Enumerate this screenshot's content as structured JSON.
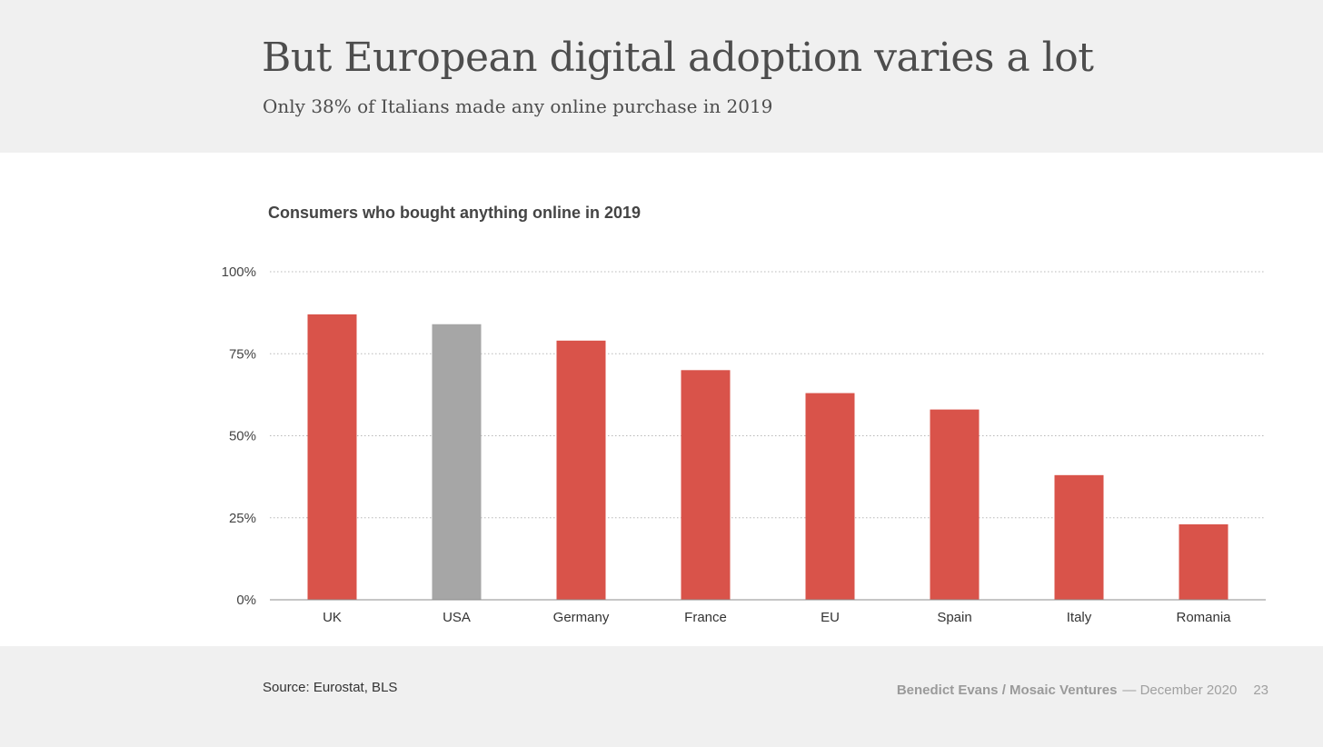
{
  "slide": {
    "title": "But European digital adoption varies a lot",
    "subtitle": "Only 38% of Italians made any online purchase in 2019"
  },
  "chart_data": {
    "type": "bar",
    "title": "Consumers who bought anything online in 2019",
    "categories": [
      "UK",
      "USA",
      "Germany",
      "France",
      "EU",
      "Spain",
      "Italy",
      "Romania"
    ],
    "values": [
      87,
      84,
      79,
      70,
      63,
      58,
      38,
      23
    ],
    "unit": "%",
    "bar_colors": [
      "#d9534a",
      "#a6a6a6",
      "#d9534a",
      "#d9534a",
      "#d9534a",
      "#d9534a",
      "#d9534a",
      "#d9534a"
    ],
    "ylim": [
      0,
      100
    ],
    "yticks": [
      0,
      25,
      50,
      75,
      100
    ],
    "ytick_labels": [
      "0%",
      "25%",
      "50%",
      "75%",
      "100%"
    ],
    "grid": true,
    "grid_style": "dotted",
    "xlabel": "",
    "ylabel": ""
  },
  "footer": {
    "source": "Source: Eurostat, BLS",
    "author": "Benedict Evans / Mosaic Ventures",
    "date": "— December 2020",
    "page": "23"
  }
}
